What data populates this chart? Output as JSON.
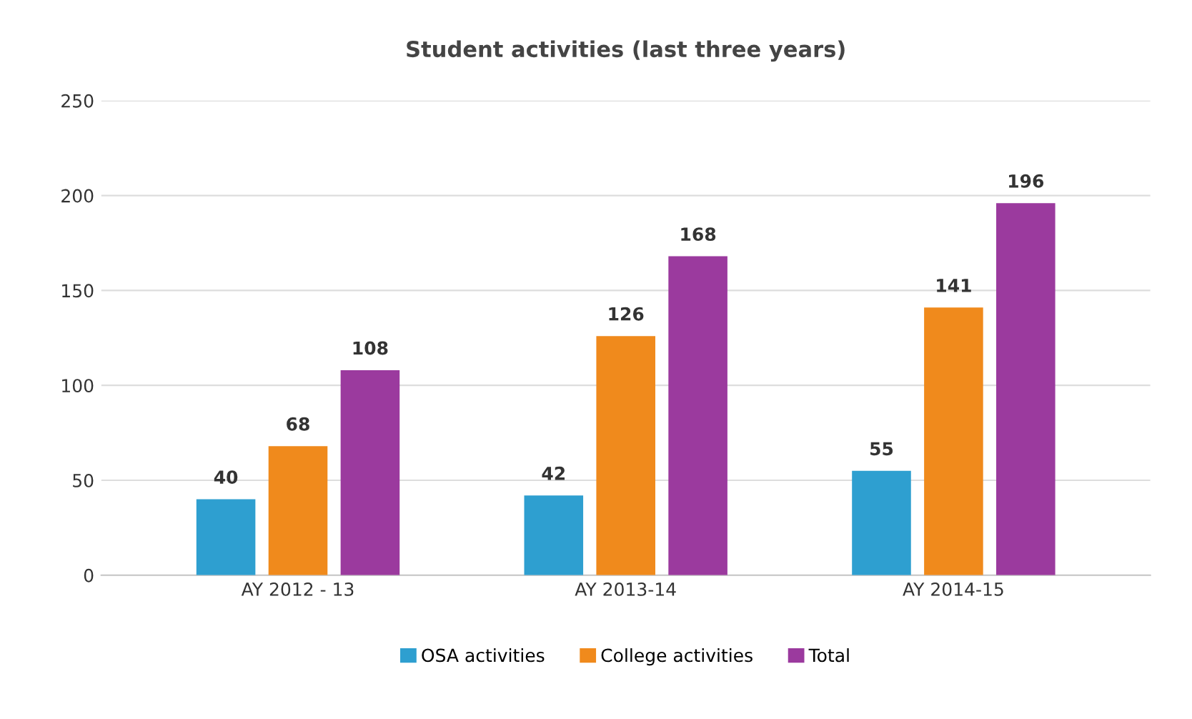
{
  "chart_data": {
    "type": "bar",
    "title": "Student activities (last three years)",
    "categories": [
      "AY 2012 - 13",
      "AY 2013-14",
      "AY 2014-15"
    ],
    "series": [
      {
        "name": "OSA activities",
        "color": "#2e9fd0",
        "values": [
          40,
          42,
          55
        ]
      },
      {
        "name": "College activities",
        "color": "#f08a1c",
        "values": [
          68,
          126,
          141
        ]
      },
      {
        "name": "Total",
        "color": "#9b3a9e",
        "values": [
          108,
          168,
          196
        ]
      }
    ],
    "ylim": [
      0,
      250
    ],
    "yticks": [
      0,
      50,
      100,
      150,
      200,
      250
    ],
    "grid": "y",
    "legend": "bottom",
    "data_labels": true
  }
}
